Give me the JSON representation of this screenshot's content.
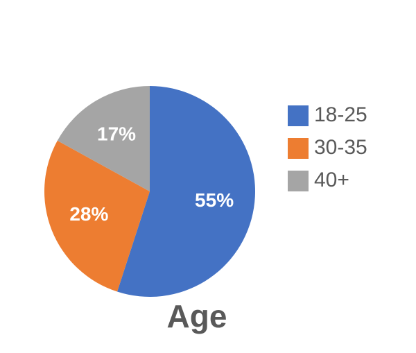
{
  "chart_data": {
    "type": "pie",
    "title": "Age",
    "categories": [
      "18-25",
      "30-35",
      "40+"
    ],
    "values": [
      55,
      28,
      17
    ],
    "value_labels": [
      "55%",
      "28%",
      "17%"
    ],
    "colors": [
      "#4472c4",
      "#ed7d31",
      "#a5a5a5"
    ],
    "legend": "right"
  }
}
